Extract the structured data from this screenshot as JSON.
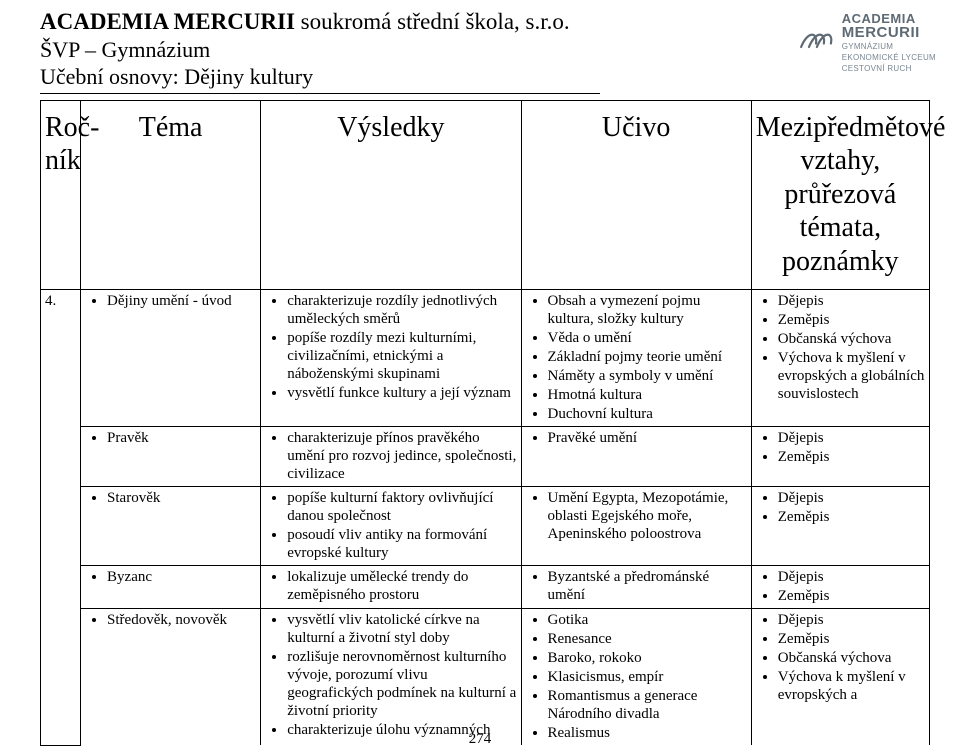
{
  "header": {
    "bold": "ACADEMIA MERCURII",
    "rest": " soukromá střední škola, s.r.o.",
    "line2": "ŠVP – Gymnázium",
    "line3": "Učební osnovy: Dějiny kultury"
  },
  "logo": {
    "l1": "ACADEMIA",
    "l2": "MERCURII",
    "sub1": "GYMNÁZIUM",
    "sub2": "EKONOMICKÉ LYCEUM",
    "sub3": "CESTOVNÍ RUCH"
  },
  "columns": {
    "rocnik": "Roč-\nník",
    "tema": "Téma",
    "vysledky": "Výsledky",
    "ucivo": "Učivo",
    "mezi": "Mezipředmětové vztahy, průřezová témata, poznámky"
  },
  "row1": {
    "rocnik": "4.",
    "tema": [
      "Dějiny umění - úvod"
    ],
    "vysledky": [
      "charakterizuje rozdíly jednotlivých uměleckých směrů",
      "popíše rozdíly mezi kulturními, civilizačními, etnickými a náboženskými skupinami",
      "vysvětlí funkce kultury a její význam"
    ],
    "ucivo": [
      "Obsah a vymezení pojmu kultura, složky kultury",
      "Věda o umění",
      "Základní pojmy teorie umění",
      "Náměty a symboly v umění",
      "Hmotná kultura",
      "Duchovní kultura"
    ],
    "mezi": [
      "Dějepis",
      "Zeměpis",
      "Občanská výchova",
      "Výchova k myšlení v evropských a globálních souvislostech"
    ]
  },
  "row2": {
    "tema": [
      "Pravěk"
    ],
    "vysledky": [
      "charakterizuje přínos pravěkého umění pro rozvoj jedince, společnosti, civilizace"
    ],
    "ucivo": [
      "Pravěké umění"
    ],
    "mezi": [
      "Dějepis",
      "Zeměpis"
    ]
  },
  "row3": {
    "tema": [
      "Starověk"
    ],
    "vysledky": [
      "popíše kulturní faktory ovlivňující danou společnost",
      "posoudí vliv antiky na formování evropské kultury"
    ],
    "ucivo": [
      "Umění Egypta, Mezopotámie, oblasti Egejského moře, Apeninského poloostrova"
    ],
    "mezi": [
      "Dějepis",
      "Zeměpis"
    ]
  },
  "row4": {
    "tema": [
      "Byzanc"
    ],
    "vysledky": [
      "lokalizuje umělecké trendy do zeměpisného prostoru"
    ],
    "ucivo": [
      "Byzantské a předrománské umění"
    ],
    "mezi": [
      "Dějepis",
      "Zeměpis"
    ]
  },
  "row5": {
    "tema": [
      "Středověk, novověk"
    ],
    "vysledky": [
      "vysvětlí vliv katolické církve na kulturní a životní styl doby",
      "rozlišuje nerovnoměrnost kulturního vývoje, porozumí vlivu geografických podmínek na kulturní a životní priority",
      "charakterizuje úlohu významných"
    ],
    "ucivo": [
      "Gotika",
      "Renesance",
      "Baroko, rokoko",
      "Klasicismus, empír",
      "Romantismus a generace Národního divadla",
      "Realismus"
    ],
    "mezi": [
      "Dějepis",
      "Zeměpis",
      "Občanská výchova",
      "Výchova k myšlení v evropských a"
    ]
  },
  "page_number": "274"
}
